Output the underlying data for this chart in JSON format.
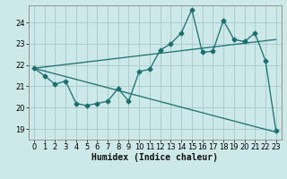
{
  "title": "",
  "xlabel": "Humidex (Indice chaleur)",
  "bg_color": "#cce8e8",
  "grid_color": "#aacccc",
  "line_color": "#1a6e6e",
  "xlim": [
    -0.5,
    23.5
  ],
  "ylim": [
    18.5,
    24.8
  ],
  "yticks": [
    19,
    20,
    21,
    22,
    23,
    24
  ],
  "xticks": [
    0,
    1,
    2,
    3,
    4,
    5,
    6,
    7,
    8,
    9,
    10,
    11,
    12,
    13,
    14,
    15,
    16,
    17,
    18,
    19,
    20,
    21,
    22,
    23
  ],
  "x": [
    0,
    1,
    2,
    3,
    4,
    5,
    6,
    7,
    8,
    9,
    10,
    11,
    12,
    13,
    14,
    15,
    16,
    17,
    18,
    19,
    20,
    21,
    22,
    23
  ],
  "y_main": [
    21.85,
    21.5,
    21.1,
    21.25,
    20.2,
    20.1,
    20.2,
    20.3,
    20.9,
    20.3,
    21.7,
    21.8,
    22.7,
    23.0,
    23.5,
    24.6,
    22.6,
    22.65,
    24.1,
    23.2,
    23.1,
    23.5,
    22.2,
    18.9
  ],
  "trend1_x0": 0,
  "trend1_y0": 21.85,
  "trend1_x1": 23,
  "trend1_y1": 18.85,
  "trend2_x0": 0,
  "trend2_y0": 21.85,
  "trend2_x1": 23,
  "trend2_y1": 23.2,
  "tick_fontsize": 6,
  "xlabel_fontsize": 7,
  "spine_color": "#888888",
  "marker": "D",
  "markersize": 2.5,
  "linewidth": 0.9
}
